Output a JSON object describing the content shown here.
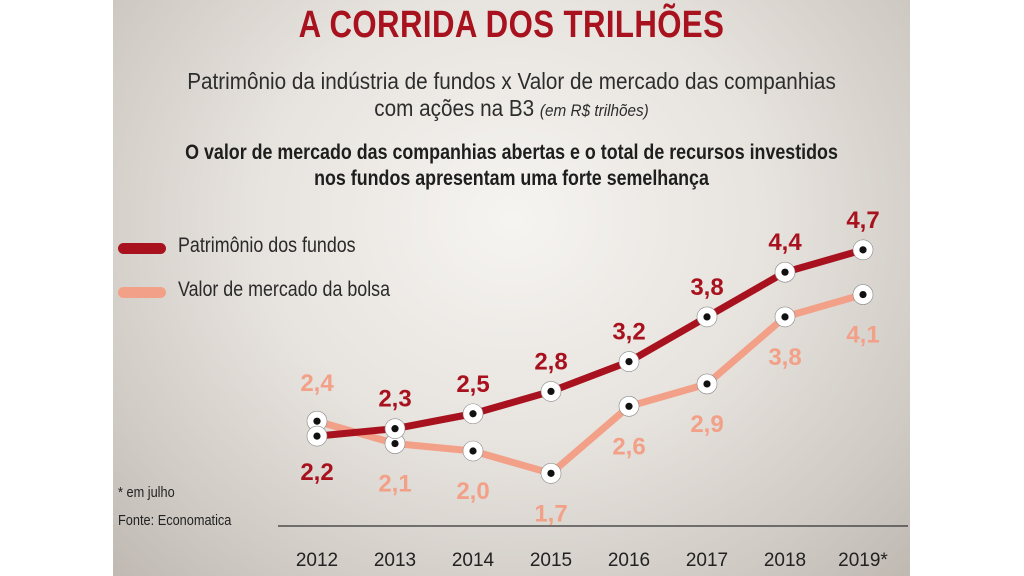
{
  "title": "A CORRIDA DOS TRILHÕES",
  "subtitle_line1": "Patrimônio da indústria de fundos x Valor de mercado das companhias",
  "subtitle_line2": "com ações na B3",
  "subtitle_unit": "(em R$ trilhões)",
  "headline_line1": "O valor de mercado das companhias abertas e o total de recursos investidos",
  "headline_line2": "nos fundos apresentam uma forte semelhança",
  "footnote": "* em julho",
  "source": "Fonte: Economatica",
  "colors": {
    "fundos": "#a8121e",
    "bolsa": "#f3a088",
    "marker_ring": "#ffffff",
    "marker_dot": "#111111"
  },
  "chart_data": {
    "type": "line",
    "x": [
      "2012",
      "2013",
      "2014",
      "2015",
      "2016",
      "2017",
      "2018",
      "2019*"
    ],
    "series": [
      {
        "name": "Patrimônio dos fundos",
        "values": [
          2.2,
          2.3,
          2.5,
          2.8,
          3.2,
          3.8,
          4.4,
          4.7
        ],
        "labels": [
          "2,2",
          "2,3",
          "2,5",
          "2,8",
          "3,2",
          "3,8",
          "4,4",
          "4,7"
        ]
      },
      {
        "name": "Valor de mercado da bolsa",
        "values": [
          2.4,
          2.1,
          2.0,
          1.7,
          2.6,
          2.9,
          3.8,
          4.1
        ],
        "labels": [
          "2,4",
          "2,1",
          "2,0",
          "1,7",
          "2,6",
          "2,9",
          "3,8",
          "4,1"
        ]
      }
    ],
    "grid": false,
    "legend_position": "left"
  }
}
